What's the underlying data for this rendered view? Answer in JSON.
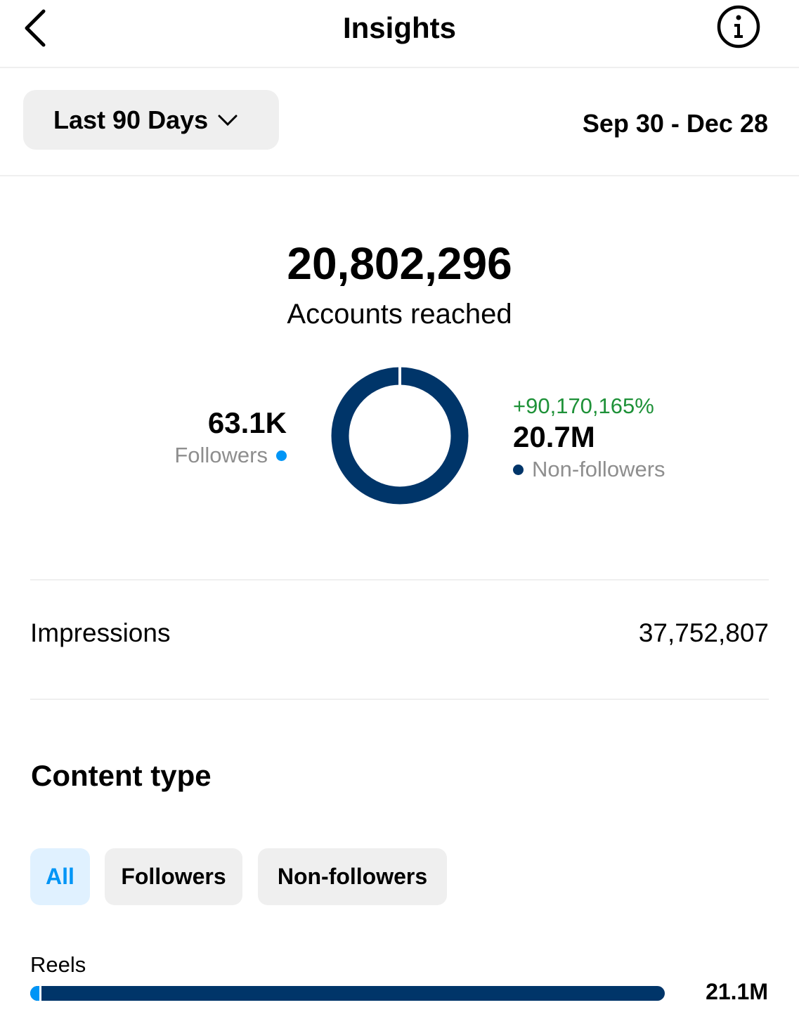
{
  "header": {
    "title": "Insights",
    "back_icon": "chevron-left-icon",
    "info_icon": "info-icon"
  },
  "filter": {
    "range_label": "Last 90 Days",
    "date_range": "Sep 30 - Dec 28"
  },
  "reach": {
    "total": "20,802,296",
    "label": "Accounts reached",
    "followers": {
      "value": "63.1K",
      "label": "Followers",
      "color": "#0095f6"
    },
    "non_followers": {
      "change": "+90,170,165%",
      "value": "20.7M",
      "label": "Non-followers",
      "color": "#003569"
    }
  },
  "impressions": {
    "label": "Impressions",
    "value": "37,752,807"
  },
  "content_type": {
    "title": "Content type",
    "tabs": [
      {
        "label": "All",
        "selected": true
      },
      {
        "label": "Followers"
      },
      {
        "label": "Non-followers"
      }
    ],
    "rows": [
      {
        "label": "Reels",
        "value": "21.1M",
        "followers_fraction": 0.003
      }
    ]
  }
}
